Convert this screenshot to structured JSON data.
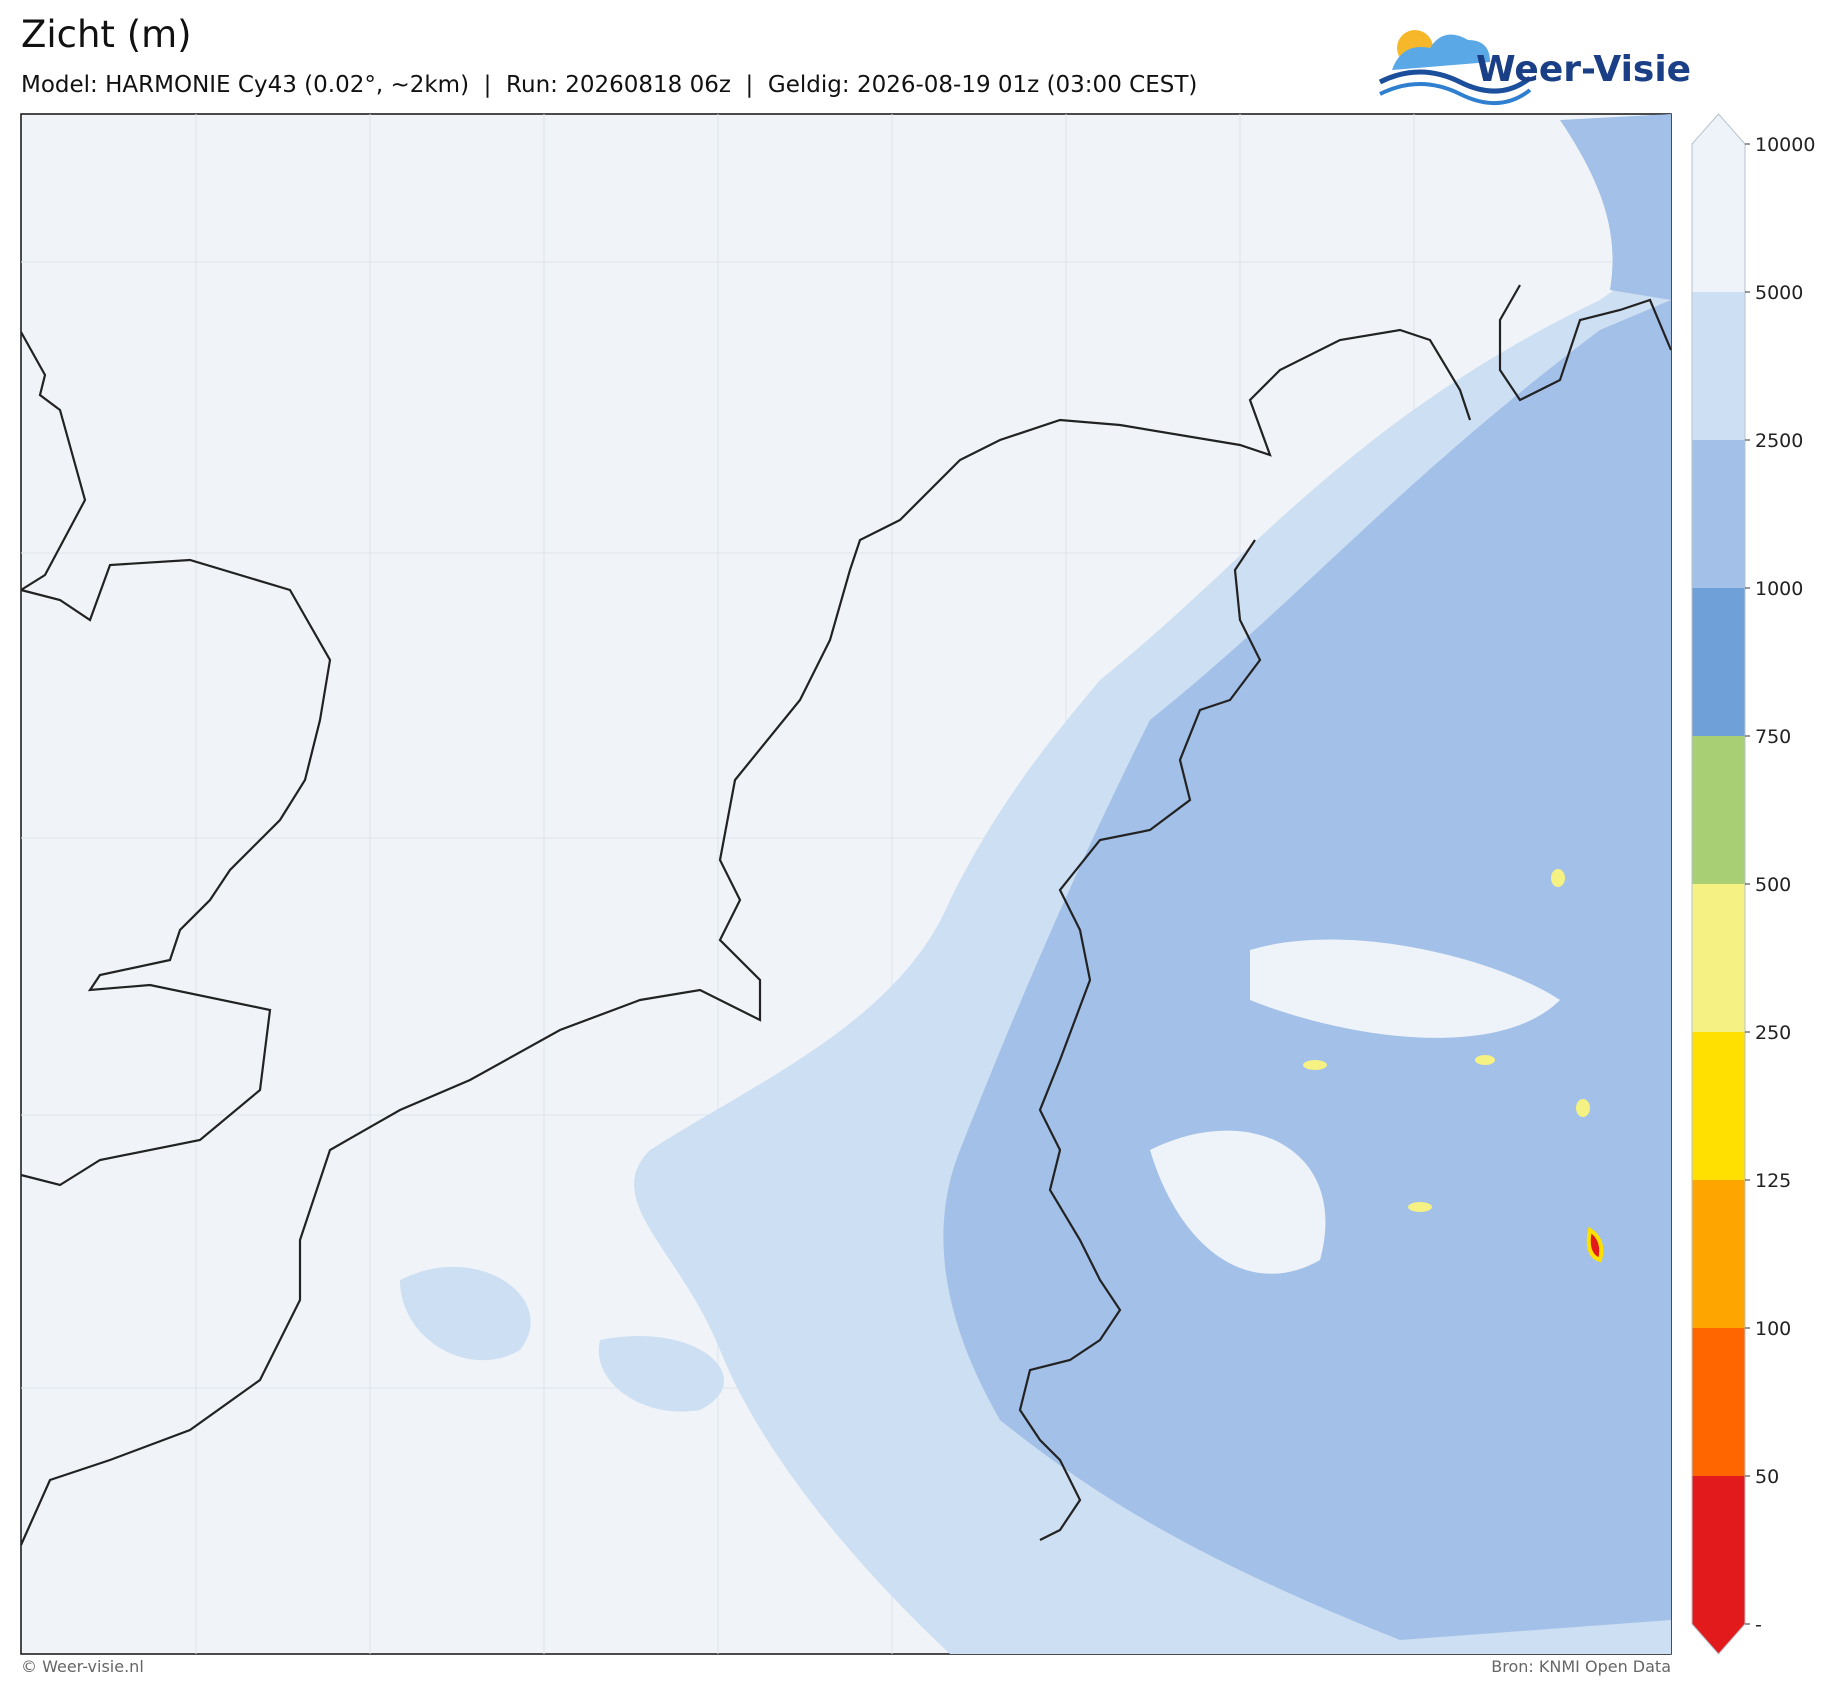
{
  "header": {
    "title": "Zicht (m)",
    "subtitle": "Model: HARMONIE Cy43 (0.02°, ~2km)  |  Run: 20260818 06z  |  Geldig: 2026-08-19 01z (03:00 CEST)",
    "logo": "Weer-Visie"
  },
  "colorbar": {
    "ticks": [
      10000,
      5000,
      2500,
      1000,
      750,
      500,
      250,
      125,
      100,
      50,
      "-"
    ],
    "colors": [
      "#eef3f9",
      "#cddff2",
      "#a3c0e8",
      "#6fa0d8",
      "#a8cf74",
      "#f5f283",
      "#ffe000",
      "#ffa500",
      "#ff6600",
      "#e31a1c"
    ]
  },
  "footer": {
    "left": "© Weer-visie.nl",
    "right": "Bron: KNMI Open Data"
  }
}
